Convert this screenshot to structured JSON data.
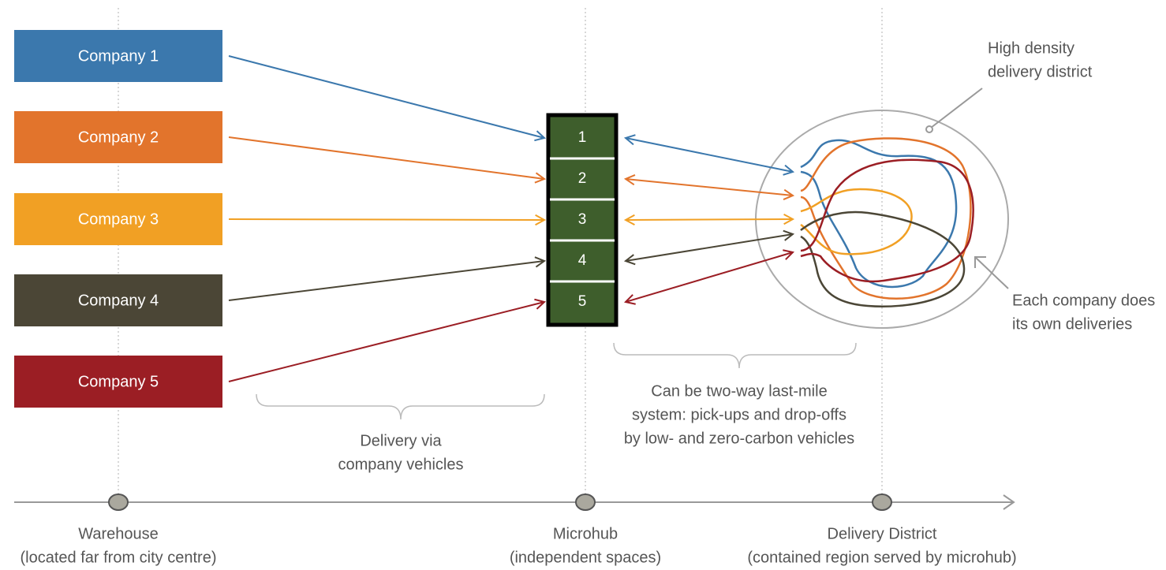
{
  "companies": [
    {
      "label": "Company 1",
      "color": "#3b78ad"
    },
    {
      "label": "Company 2",
      "color": "#e2742c"
    },
    {
      "label": "Company 3",
      "color": "#f1a024"
    },
    {
      "label": "Company 4",
      "color": "#4b4636"
    },
    {
      "label": "Company 5",
      "color": "#9b1e24"
    }
  ],
  "hub": {
    "slots": [
      "1",
      "2",
      "3",
      "4",
      "5"
    ],
    "color": "#3e5e2c"
  },
  "annotations": {
    "district": [
      "High density",
      "delivery district"
    ],
    "own_deliveries": [
      "Each company does",
      "its own deliveries"
    ],
    "company_vehicles": [
      "Delivery via",
      "company vehicles"
    ],
    "last_mile": [
      "Can be two-way last-mile",
      "system: pick-ups and drop-offs",
      "by low- and zero-carbon vehicles"
    ]
  },
  "timeline": [
    {
      "title": "Warehouse",
      "subtitle": "(located far from city centre)"
    },
    {
      "title": "Microhub",
      "subtitle": "(independent spaces)"
    },
    {
      "title": "Delivery District",
      "subtitle": "(contained region served by microhub)"
    }
  ]
}
